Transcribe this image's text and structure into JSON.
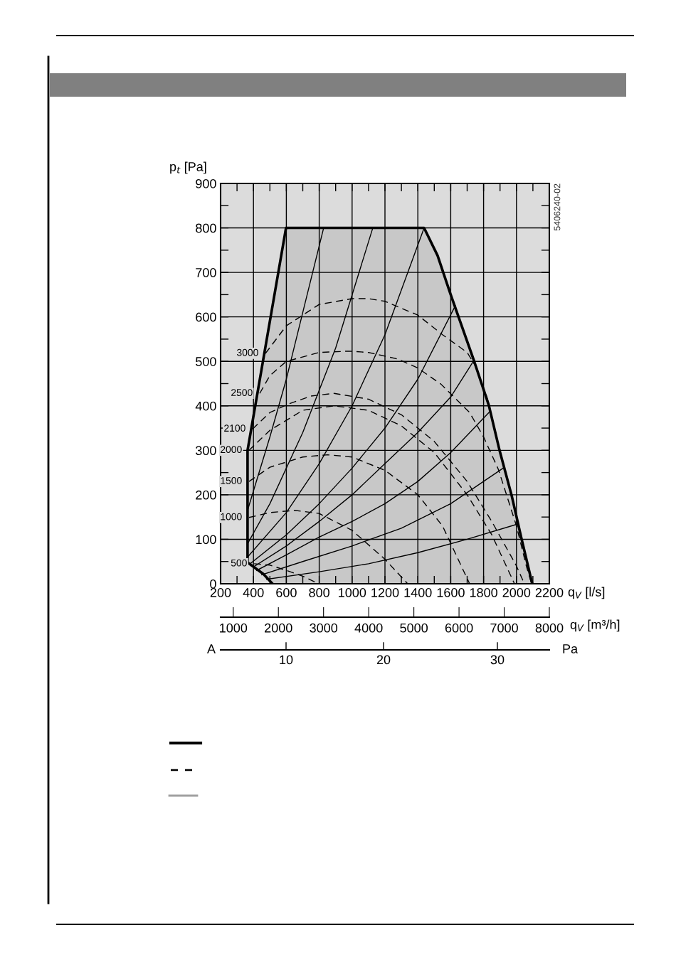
{
  "chart_data": {
    "type": "line",
    "xlabel": "q$_{V}$ [l/s]",
    "ylabel": "p$_{t}$ [Pa]",
    "x2label": "q$_{V}$ [m³/h]",
    "xlim": [
      200,
      2200
    ],
    "ylim": [
      0,
      900
    ],
    "xticks": [
      200,
      {
        "value": 300,
        "label": null
      },
      400,
      {
        "value": 500,
        "label": null
      },
      600,
      {
        "value": 700,
        "label": null
      },
      800,
      {
        "value": 900,
        "label": null
      },
      1000,
      {
        "value": 1100,
        "label": null
      },
      1200,
      {
        "value": 1300,
        "label": null
      },
      1400,
      {
        "value": 1500,
        "label": null
      },
      1600,
      {
        "value": 1700,
        "label": null
      },
      1800,
      {
        "value": 1900,
        "label": null
      },
      2000,
      {
        "value": 2100,
        "label": null
      },
      2200
    ],
    "yticks": [
      0,
      {
        "value": 50,
        "label": null
      },
      100,
      {
        "value": 150,
        "label": null
      },
      200,
      {
        "value": 250,
        "label": null
      },
      300,
      {
        "value": 350,
        "label": null
      },
      400,
      {
        "value": 450,
        "label": null
      },
      500,
      {
        "value": 550,
        "label": null
      },
      600,
      {
        "value": 650,
        "label": null
      },
      700,
      {
        "value": 750,
        "label": null
      },
      800,
      {
        "value": 850,
        "label": null
      },
      900
    ],
    "x2lim": [
      720,
      8000
    ],
    "x2ticks": [
      1000,
      2000,
      3000,
      4000,
      5000,
      6000,
      7000,
      8000
    ],
    "grid": true,
    "annotations": [
      "5406240-02",
      "A",
      "Pa",
      "10",
      "20",
      "30"
    ],
    "series": [
      {
        "type": "area",
        "color": "#c8c8c8",
        "x": [
          516,
          460,
          364,
          364,
          598,
          1438,
          1520,
          1598,
          1741,
          1832,
          1897,
          1971,
          2031,
          2096
        ],
        "values": [
          0,
          22,
          48,
          300,
          800,
          800,
          738,
          652,
          502,
          401,
          300,
          198,
          101,
          0
        ]
      },
      {
        "type": "line",
        "line_style": "solid",
        "color": "#000000",
        "x": [
          364,
          500,
          600,
          700,
          827
        ],
        "values": [
          165,
          330,
          460,
          610,
          800
        ]
      },
      {
        "type": "line",
        "line_style": "solid",
        "color": "#000000",
        "x": [
          364,
          500,
          700,
          900,
          1126
        ],
        "values": [
          90,
          180,
          340,
          530,
          800
        ]
      },
      {
        "type": "line",
        "line_style": "solid",
        "color": "#000000",
        "x": [
          364,
          600,
          800,
          1000,
          1200,
          1438
        ],
        "values": [
          60,
          160,
          270,
          400,
          560,
          800
        ]
      },
      {
        "type": "line",
        "line_style": "solid",
        "color": "#000000",
        "x": [
          380,
          600,
          800,
          1000,
          1200,
          1400,
          1628
        ],
        "values": [
          45,
          110,
          180,
          260,
          350,
          460,
          625
        ]
      },
      {
        "type": "line",
        "line_style": "solid",
        "color": "#000000",
        "x": [
          400,
          600,
          800,
          1000,
          1200,
          1400,
          1600,
          1741
        ],
        "values": [
          38,
          85,
          140,
          200,
          270,
          340,
          420,
          502
        ]
      },
      {
        "type": "line",
        "line_style": "solid",
        "color": "#000000",
        "x": [
          420,
          600,
          800,
          1000,
          1200,
          1400,
          1600,
          1832
        ],
        "values": [
          30,
          65,
          105,
          140,
          180,
          230,
          295,
          385
        ]
      },
      {
        "type": "line",
        "line_style": "solid",
        "color": "#000000",
        "x": [
          450,
          700,
          1000,
          1300,
          1600,
          1923
        ],
        "values": [
          20,
          50,
          85,
          125,
          180,
          261
        ]
      },
      {
        "type": "line",
        "line_style": "solid",
        "color": "#000000",
        "x": [
          480,
          800,
          1100,
          1400,
          1700,
          2005
        ],
        "values": [
          10,
          27,
          45,
          70,
          100,
          134
        ]
      },
      {
        "type": "line",
        "line_style": "dashed",
        "color": "#000000",
        "name": "3000",
        "x": [
          473,
          600,
          800,
          1000,
          1100,
          1200,
          1400,
          1550,
          1700,
          1750,
          1820,
          1880
        ],
        "values": [
          518,
          580,
          628,
          641,
          641,
          635,
          604,
          560,
          520,
          490,
          420,
          330
        ]
      },
      {
        "type": "line",
        "line_style": "dashed",
        "color": "#000000",
        "name": "2500",
        "x": [
          438,
          500,
          600,
          800,
          980,
          1100,
          1280,
          1400,
          1540,
          1715,
          1800,
          1890,
          2000,
          2060,
          2092
        ],
        "values": [
          428,
          468,
          500,
          520,
          523,
          520,
          505,
          485,
          449,
          385,
          330,
          257,
          130,
          40,
          0
        ]
      },
      {
        "type": "line",
        "line_style": "dashed",
        "color": "#000000",
        "name": "2100",
        "x": [
          395,
          500,
          620,
          750,
          890,
          1100,
          1300,
          1500,
          1700,
          1850,
          2000,
          2048
        ],
        "values": [
          348,
          385,
          405,
          422,
          428,
          415,
          380,
          320,
          230,
          140,
          40,
          0
        ]
      },
      {
        "type": "line",
        "line_style": "dashed",
        "color": "#000000",
        "name": "2000",
        "x": [
          373,
          500,
          700,
          890,
          1100,
          1300,
          1500,
          1700,
          1850,
          1988
        ],
        "values": [
          300,
          345,
          390,
          400,
          390,
          355,
          295,
          200,
          110,
          0
        ]
      },
      {
        "type": "line",
        "line_style": "dashed",
        "color": "#000000",
        "name": "1500",
        "x": [
          373,
          500,
          700,
          850,
          1000,
          1200,
          1400,
          1550,
          1715
        ],
        "values": [
          230,
          262,
          285,
          290,
          285,
          255,
          200,
          130,
          0
        ]
      },
      {
        "type": "line",
        "line_style": "dashed",
        "color": "#000000",
        "name": "1000",
        "x": [
          373,
          500,
          650,
          800,
          1000,
          1200,
          1338
        ],
        "values": [
          149,
          160,
          165,
          158,
          120,
          55,
          0
        ]
      },
      {
        "type": "line",
        "line_style": "dashed",
        "color": "#000000",
        "name": "500",
        "x": [
          404,
          500,
          600,
          700,
          797
        ],
        "values": [
          45,
          42,
          30,
          17,
          0
        ]
      }
    ]
  }
}
